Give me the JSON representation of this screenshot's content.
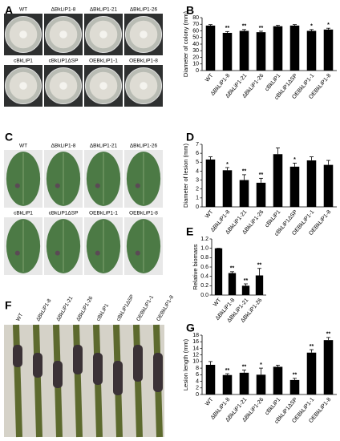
{
  "panel_labels": [
    "A",
    "B",
    "C",
    "D",
    "E",
    "F",
    "G"
  ],
  "photos": [
    {
      "kind": "plate",
      "labels": [
        "WT",
        "ΔBkLiP1-8",
        "ΔBkLiP1-21",
        "ΔBkLiP1-26",
        "cBkLiP1",
        "cBkLiP1ΔSP",
        "OEBkLiP1-1",
        "OEBkLiP1-8"
      ]
    },
    {
      "kind": "leaf",
      "labels": [
        "WT",
        "ΔBkLiP1-8",
        "ΔBkLiP1-21",
        "ΔBkLiP1-26",
        "cBkLiP1",
        "cBkLiP1ΔSP",
        "OEBkLiP1-1",
        "OEBkLiP1-8"
      ]
    },
    {
      "kind": "stem",
      "labels": [
        "WT",
        "ΔBkLiP1-8",
        "ΔBkLiP1-21",
        "ΔBkLiP1-26",
        "cBkLiP1",
        "cBkLiP1ΔSP",
        "OEBkLiP1-1",
        "OEBkLiP1-8"
      ]
    }
  ],
  "chart_data": [
    {
      "type": "bar",
      "y_label": "Diameter of colony (mm)",
      "color": "#000000",
      "categories": [
        "WT",
        "ΔBkLiP1-8",
        "ΔBkLiP1-21",
        "ΔBkLiP1-26",
        "cBkLiP1",
        "cBkLiP1ΔSP",
        "OEBkLiP1-1",
        "OEBkLiP1-8"
      ],
      "values": [
        68,
        57,
        60,
        58,
        67,
        68,
        60,
        62
      ],
      "errors": [
        1.5,
        2,
        2,
        1.5,
        1.5,
        1.5,
        2,
        2
      ],
      "annotations": [
        null,
        "**",
        "**",
        "**",
        null,
        null,
        "*",
        "*"
      ],
      "ylim": [
        0,
        80
      ],
      "yticks": [
        0,
        10,
        20,
        30,
        40,
        50,
        60,
        70,
        80
      ]
    },
    {
      "type": "bar",
      "y_label": "Diameter of lesion (mm)",
      "color": "#000000",
      "categories": [
        "WT",
        "ΔBkLiP1-8",
        "ΔBkLiP1-21",
        "ΔBkLiP1-26",
        "cBkLiP1",
        "cBkLiP1ΔSP",
        "OEBkLiP1-1",
        "OEBkLiP1-8"
      ],
      "values": [
        5.3,
        4.1,
        3.0,
        2.7,
        5.9,
        4.5,
        5.2,
        4.7
      ],
      "errors": [
        0.3,
        0.3,
        0.6,
        0.5,
        0.7,
        0.4,
        0.4,
        0.5
      ],
      "annotations": [
        null,
        "*",
        "**",
        "**",
        null,
        "*",
        null,
        null
      ],
      "ylim": [
        0,
        7
      ],
      "yticks": [
        0,
        1,
        2,
        3,
        4,
        5,
        6,
        7
      ]
    },
    {
      "type": "bar",
      "y_label": "Relative biomass",
      "color": "#000000",
      "categories": [
        "WT",
        "ΔBkLiP1-8",
        "ΔBkLiP1-21",
        "ΔBkLiP1-26"
      ],
      "values": [
        1.0,
        0.47,
        0.2,
        0.42
      ],
      "errors": [
        0,
        0.03,
        0.04,
        0.15
      ],
      "annotations": [
        null,
        "**",
        "**",
        "**"
      ],
      "ylim": [
        0,
        1.2
      ],
      "yticks": [
        {
          "value": 0,
          "label": "0.0"
        },
        0.2,
        0.4,
        0.6,
        0.8,
        {
          "value": 1,
          "label": "1.0"
        },
        1.2
      ]
    },
    {
      "type": "bar",
      "y_label": "Lesion length (mm)",
      "color": "#000000",
      "categories": [
        "WT",
        "ΔBkLiP1-8",
        "ΔBkLiP1-21",
        "ΔBkLiP1-26",
        "cBkLiP1",
        "cBkLiP1ΔSP",
        "OEBkLiP1-1",
        "OEBkLiP1-8"
      ],
      "values": [
        9,
        5.9,
        6.6,
        6.0,
        8.4,
        4.4,
        12.7,
        16.5
      ],
      "errors": [
        1,
        0.4,
        0.8,
        2.0,
        0.5,
        0.5,
        0.9,
        0.8
      ],
      "annotations": [
        null,
        "**",
        "**",
        "*",
        null,
        "**",
        "**",
        "**"
      ],
      "ylim": [
        0,
        18
      ],
      "yticks": [
        0,
        2,
        4,
        6,
        8,
        10,
        12,
        14,
        16,
        18
      ]
    }
  ]
}
